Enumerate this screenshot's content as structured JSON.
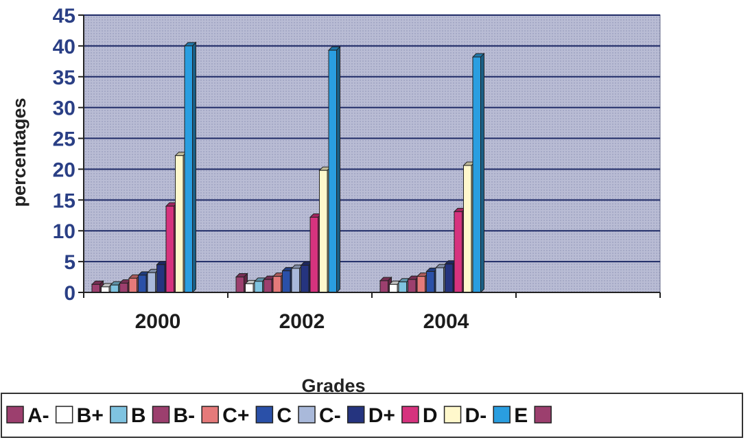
{
  "chart_data": {
    "type": "bar",
    "categories": [
      "2000",
      "2002",
      "2004"
    ],
    "xlabel": "Grades",
    "ylabel": "percentages",
    "ylim": [
      0,
      45
    ],
    "yticks": [
      0,
      5,
      10,
      15,
      20,
      25,
      30,
      35,
      40,
      45
    ],
    "grid": true,
    "legend_position": "bottom",
    "series": [
      {
        "name": "A-",
        "color": "#9c3f6e",
        "values": [
          1.3,
          2.5,
          1.9
        ]
      },
      {
        "name": "B+",
        "color": "#ffffff",
        "values": [
          0.9,
          1.4,
          1.3
        ]
      },
      {
        "name": "B",
        "color": "#7fc3e0",
        "values": [
          1.2,
          1.8,
          1.7
        ]
      },
      {
        "name": "B-",
        "color": "#9c3f6e",
        "values": [
          1.5,
          2.1,
          2.1
        ]
      },
      {
        "name": "C+",
        "color": "#e57a7a",
        "values": [
          2.3,
          2.6,
          2.6
        ]
      },
      {
        "name": "C",
        "color": "#2a50a8",
        "values": [
          2.8,
          3.5,
          3.4
        ]
      },
      {
        "name": "C-",
        "color": "#a9b9da",
        "values": [
          3.2,
          3.9,
          4.0
        ]
      },
      {
        "name": "D+",
        "color": "#25347f",
        "values": [
          4.5,
          4.4,
          4.6
        ]
      },
      {
        "name": "D",
        "color": "#d6337e",
        "values": [
          14.0,
          12.2,
          13.1
        ]
      },
      {
        "name": "D-",
        "color": "#fff8cc",
        "values": [
          22.2,
          19.8,
          20.6
        ]
      },
      {
        "name": "E",
        "color": "#2a9ee0",
        "values": [
          40.0,
          39.3,
          38.2
        ]
      },
      {
        "name": "",
        "color": "#9c3f6e",
        "values": [
          null,
          null,
          null
        ]
      }
    ]
  }
}
